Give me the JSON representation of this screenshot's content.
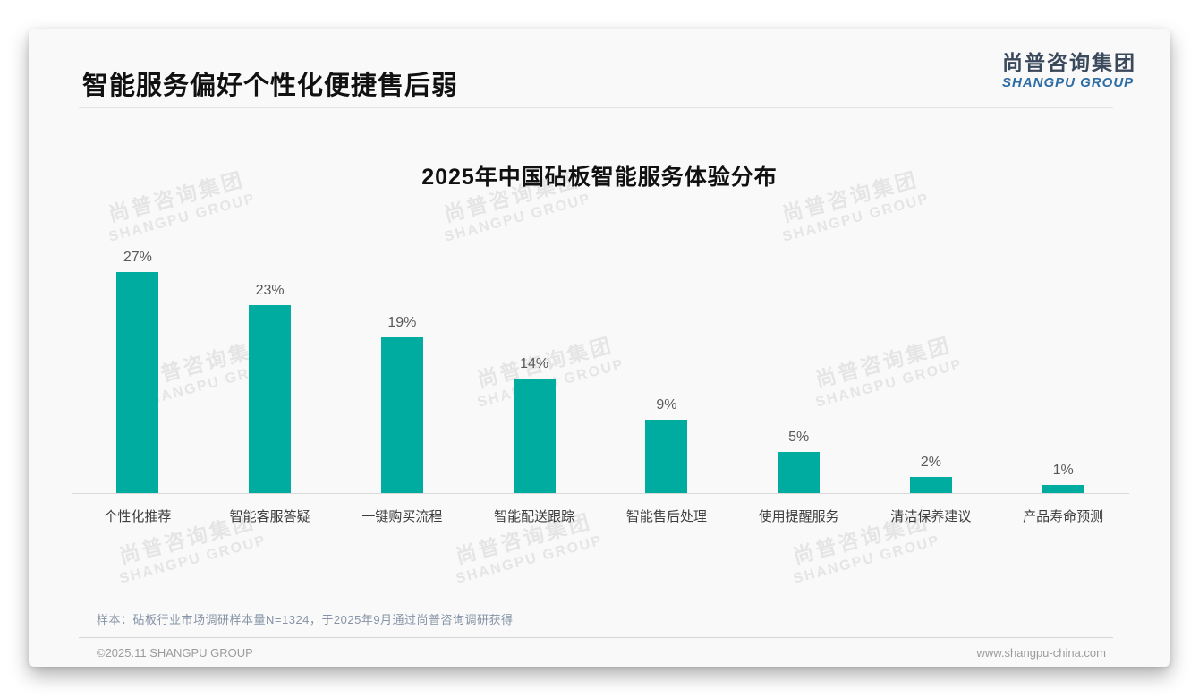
{
  "page": {
    "title": "智能服务偏好个性化便捷售后弱",
    "logo": {
      "cn": "尚普咨询集团",
      "en": "SHANGPU GROUP",
      "cn_color": "#3a4a5c",
      "en_color": "#2e6da4"
    },
    "watermark": {
      "line1": "尚普咨询集团",
      "line2": "SHANGPU GROUP"
    },
    "footer": {
      "note": "样本：砧板行业市场调研样本量N=1324，于2025年9月通过尚普咨询调研获得",
      "copyright": "©2025.11 SHANGPU GROUP",
      "website": "www.shangpu-china.com"
    }
  },
  "chart_data": {
    "type": "bar",
    "title": "2025年中国砧板智能服务体验分布",
    "categories": [
      "个性化推荐",
      "智能客服答疑",
      "一键购买流程",
      "智能配送跟踪",
      "智能售后处理",
      "使用提醒服务",
      "清洁保养建议",
      "产品寿命预测"
    ],
    "values": [
      27,
      23,
      19,
      14,
      9,
      5,
      2,
      1
    ],
    "unit": "%",
    "bar_color": "#00aca0",
    "value_label_color": "#595959",
    "axis_line_color": "#d9d9d9",
    "xlabel": "",
    "ylabel": "",
    "ylim": [
      0,
      30
    ],
    "grid": false,
    "legend": "none",
    "value_labels_shown": true
  }
}
